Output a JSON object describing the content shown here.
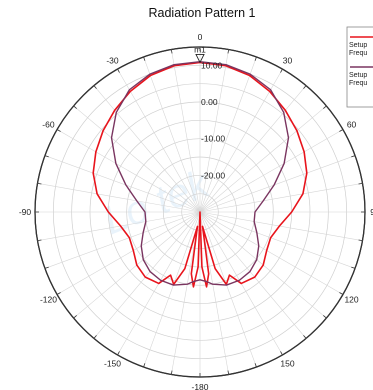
{
  "chart_data": {
    "type": "polar-line",
    "title": "Radiation Pattern 1",
    "angle_ticks": [
      "0",
      "30",
      "60",
      "90",
      "120",
      "150",
      "-180",
      "-150",
      "-120",
      "-90",
      "-60",
      "-30"
    ],
    "radial_ticks": [
      "10.00",
      "0.00",
      "-10.00",
      "-20.00"
    ],
    "rlim": [
      -30,
      15
    ],
    "grid": true,
    "marker": {
      "label": "m1",
      "angle_deg": 0
    },
    "watermark": "Lo tek",
    "legend": {
      "placement": "top-right",
      "entries": [
        {
          "text_1": "Setup",
          "text_2": "Frequ",
          "color": "#e8141c"
        },
        {
          "text_1": "Setup",
          "text_2": "Frequ",
          "color": "#7a3560"
        }
      ]
    },
    "series": [
      {
        "color": "#e8141c",
        "theta": [
          0,
          10,
          20,
          30,
          40,
          50,
          60,
          70,
          80,
          90,
          100,
          110,
          120,
          130,
          140,
          150,
          155,
          160,
          165,
          170,
          172,
          175,
          178,
          180,
          182,
          185,
          188,
          190,
          195,
          200,
          205,
          210,
          220,
          230,
          240,
          250,
          260,
          270,
          280,
          290,
          300,
          310,
          320,
          330,
          340,
          350,
          360
        ],
        "r": [
          10.8,
          10.5,
          9.6,
          8.0,
          6.2,
          4.5,
          2.8,
          1.0,
          -1.5,
          -5.0,
          -8.0,
          -9.5,
          -9.0,
          -7.5,
          -6.8,
          -7.5,
          -11.0,
          -9.0,
          -14.0,
          -26.0,
          -13.0,
          -9.5,
          -15.0,
          -30.0,
          -15.0,
          -9.5,
          -13.0,
          -26.0,
          -14.0,
          -9.0,
          -11.0,
          -7.5,
          -6.8,
          -7.5,
          -9.0,
          -9.5,
          -8.0,
          -5.0,
          -1.5,
          1.0,
          2.8,
          4.5,
          6.2,
          8.0,
          9.6,
          10.5,
          10.8
        ]
      },
      {
        "color": "#7a3560",
        "theta": [
          0,
          10,
          20,
          30,
          40,
          50,
          60,
          70,
          80,
          90,
          100,
          110,
          120,
          130,
          140,
          150,
          160,
          170,
          175,
          180,
          185,
          190,
          200,
          210,
          220,
          230,
          240,
          250,
          260,
          270,
          280,
          290,
          300,
          310,
          320,
          330,
          340,
          350,
          360
        ],
        "r": [
          11.0,
          10.8,
          10.0,
          8.5,
          5.5,
          1.5,
          -3.5,
          -8.5,
          -12.5,
          -15.0,
          -15.0,
          -13.5,
          -11.5,
          -9.8,
          -8.8,
          -8.5,
          -8.8,
          -10.0,
          -11.0,
          -11.5,
          -11.0,
          -10.0,
          -8.8,
          -8.5,
          -8.8,
          -9.8,
          -11.5,
          -13.5,
          -15.0,
          -15.0,
          -12.5,
          -8.5,
          -3.5,
          1.5,
          5.5,
          8.5,
          10.0,
          10.8,
          11.0
        ]
      }
    ]
  }
}
